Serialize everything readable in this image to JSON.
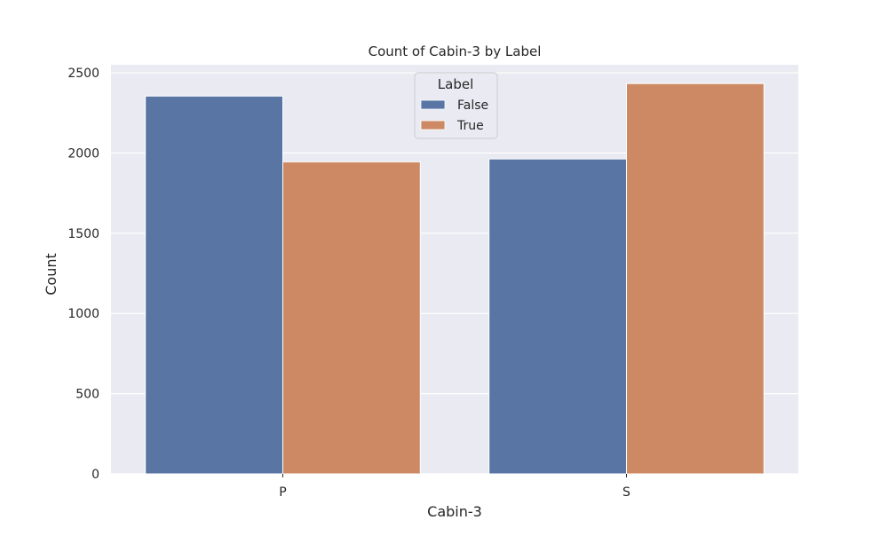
{
  "chart_data": {
    "type": "bar",
    "title": "Count of Cabin-3 by Label",
    "xlabel": "Cabin-3",
    "ylabel": "Count",
    "categories": [
      "P",
      "S"
    ],
    "series": [
      {
        "name": "False",
        "values": [
          2355,
          1963
        ],
        "color": "#5875a4"
      },
      {
        "name": "True",
        "values": [
          1945,
          2433
        ],
        "color": "#cc8963"
      }
    ],
    "ylim": [
      0,
      2550
    ],
    "yticks": [
      0,
      500,
      1000,
      1500,
      2000,
      2500
    ],
    "grid": true,
    "background": "#eaeaf2",
    "legend": {
      "title": "Label",
      "placement": "top-center"
    }
  }
}
